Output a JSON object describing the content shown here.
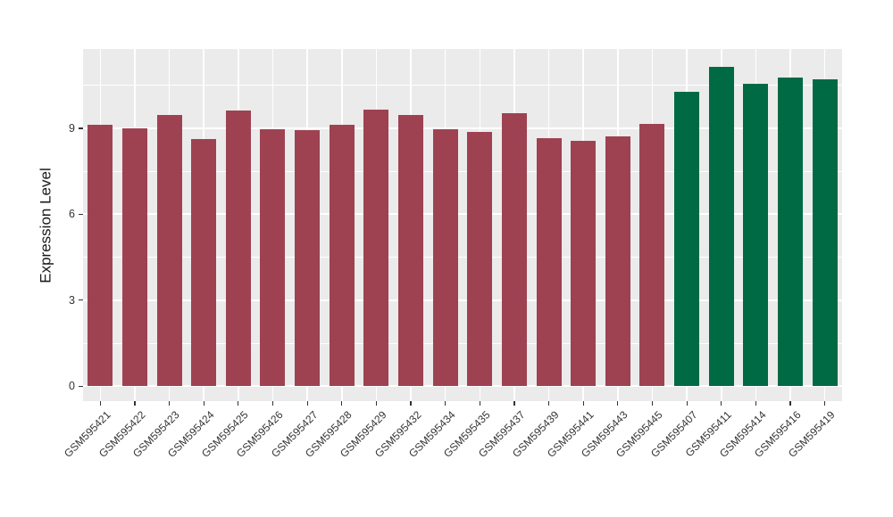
{
  "chart_data": {
    "type": "bar",
    "title": "",
    "xlabel": "",
    "ylabel": "Expression Level",
    "categories": [
      "GSM595421",
      "GSM595422",
      "GSM595423",
      "GSM595424",
      "GSM595425",
      "GSM595426",
      "GSM595427",
      "GSM595428",
      "GSM595429",
      "GSM595432",
      "GSM595434",
      "GSM595435",
      "GSM595437",
      "GSM595439",
      "GSM595441",
      "GSM595443",
      "GSM595445",
      "GSM595407",
      "GSM595411",
      "GSM595414",
      "GSM595416",
      "GSM595419"
    ],
    "values": [
      9.11,
      9.0,
      9.46,
      8.64,
      9.61,
      8.97,
      8.93,
      9.13,
      9.64,
      9.47,
      8.96,
      8.88,
      9.53,
      8.67,
      8.57,
      8.71,
      9.16,
      10.28,
      11.15,
      10.54,
      10.76,
      10.7
    ],
    "groups": [
      "maroon",
      "maroon",
      "maroon",
      "maroon",
      "maroon",
      "maroon",
      "maroon",
      "maroon",
      "maroon",
      "maroon",
      "maroon",
      "maroon",
      "maroon",
      "maroon",
      "maroon",
      "maroon",
      "maroon",
      "green",
      "green",
      "green",
      "green",
      "green"
    ],
    "group_colors": {
      "maroon": "#9E4252",
      "green": "#006A45"
    },
    "yticks": [
      "0",
      "3",
      "6",
      "9"
    ],
    "ytick_values": [
      0,
      3,
      6,
      9
    ],
    "ylim": [
      0,
      11.75
    ],
    "legend": "none",
    "grid": "white major and minor gridlines on gray panel",
    "panel_bg": "#EBEBEB",
    "xtick_label_rotation_deg": 45
  }
}
